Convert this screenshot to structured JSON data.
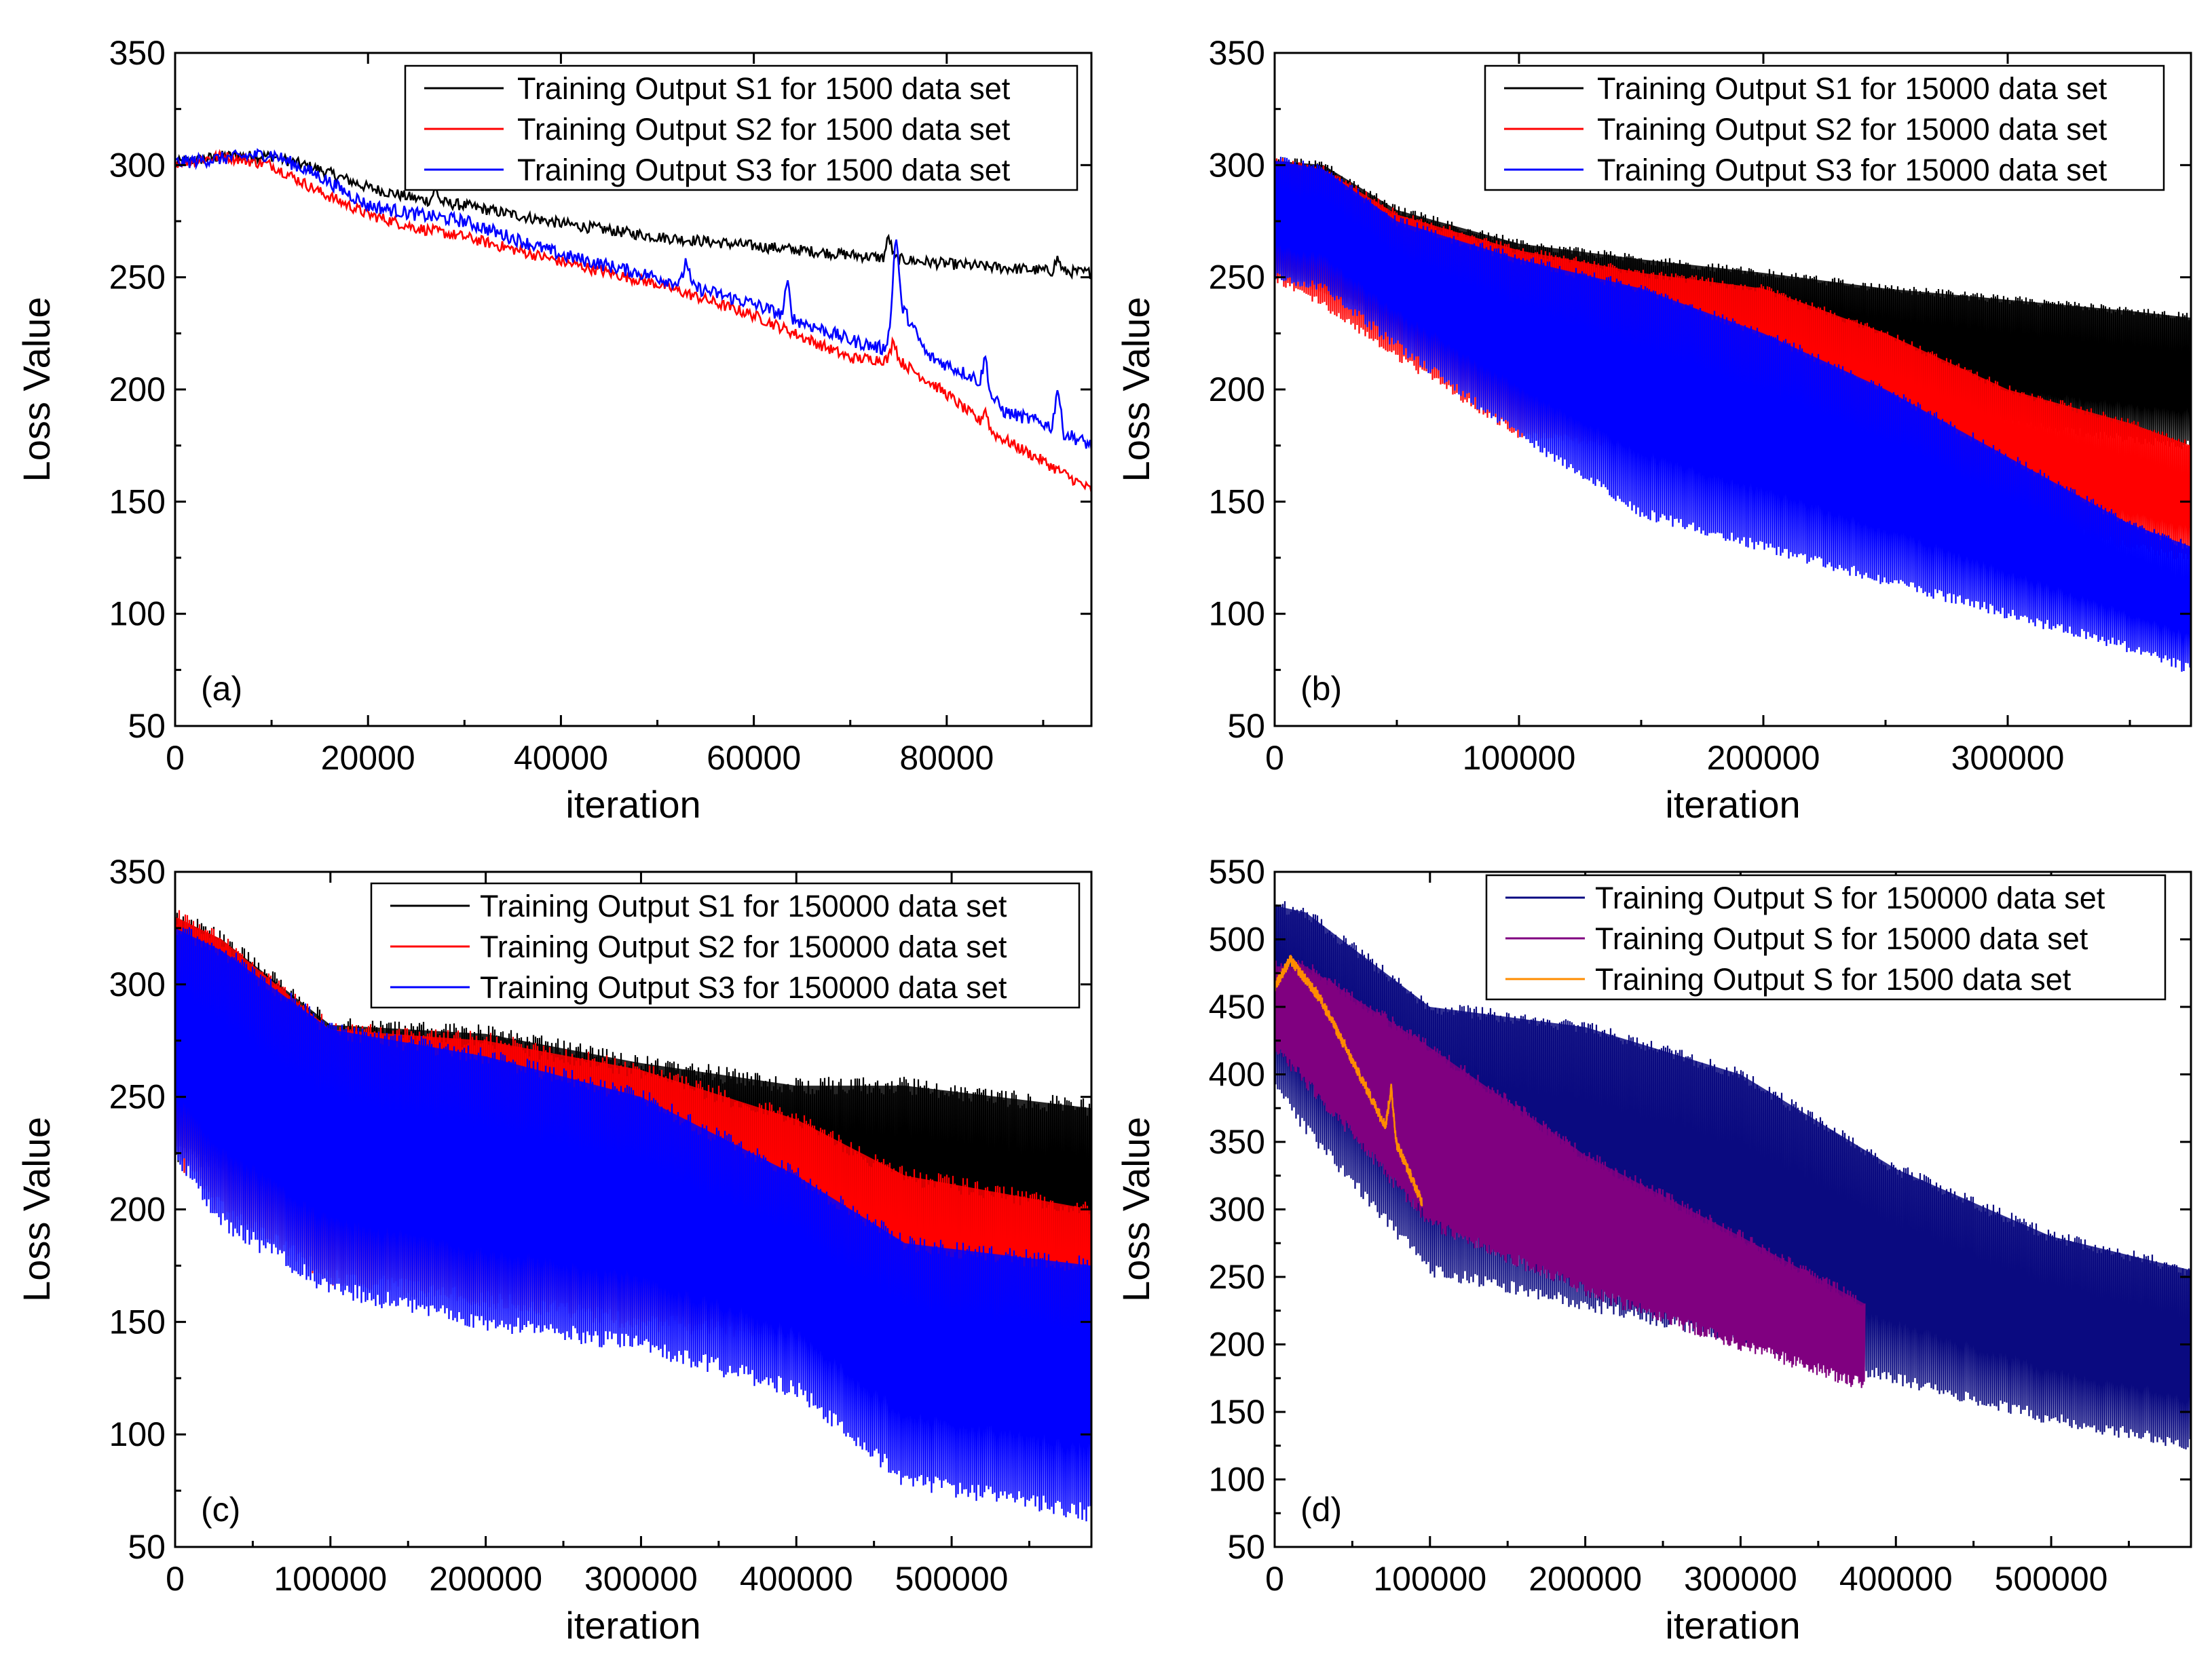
{
  "figure": {
    "ylabel": "Loss Value",
    "xlabel": "iteration"
  },
  "chart_data": [
    {
      "type": "line",
      "panel_label": "(a)",
      "xlabel": "iteration",
      "ylabel": "Loss Value",
      "xlim": [
        0,
        95000
      ],
      "ylim": [
        50,
        350
      ],
      "xticks": [
        0,
        20000,
        40000,
        60000,
        80000
      ],
      "xtick_labels": [
        "0",
        "20000",
        "40000",
        "60000",
        "80000"
      ],
      "yticks": [
        50,
        100,
        150,
        200,
        250,
        300,
        350
      ],
      "ytick_labels": [
        "50",
        "100",
        "150",
        "200",
        "250",
        "300",
        "350"
      ],
      "legend_position": "top-right",
      "series": [
        {
          "name": "Training Output S1 for 1500 data set",
          "color": "#000000",
          "band": false,
          "noise": 2.5,
          "spikes": [
            [
              27000,
              6
            ],
            [
              74000,
              10
            ],
            [
              91500,
              6
            ]
          ],
          "x": [
            0,
            5000,
            10000,
            15000,
            20000,
            25000,
            30000,
            40000,
            50000,
            60000,
            70000,
            80000,
            90000,
            95000
          ],
          "y": [
            301,
            304,
            304,
            298,
            290,
            285,
            282,
            274,
            268,
            264,
            260,
            256,
            253,
            252
          ]
        },
        {
          "name": "Training Output S2 for 1500 data set",
          "color": "#ff0000",
          "band": false,
          "noise": 2.5,
          "spikes": [
            [
              74500,
              10
            ],
            [
              84000,
              8
            ]
          ],
          "x": [
            0,
            5000,
            10000,
            15000,
            20000,
            25000,
            30000,
            40000,
            50000,
            60000,
            70000,
            75000,
            80000,
            85000,
            90000,
            95000
          ],
          "y": [
            301,
            304,
            300,
            288,
            278,
            272,
            268,
            257,
            247,
            233,
            214,
            213,
            198,
            180,
            168,
            155
          ]
        },
        {
          "name": "Training Output S3 for 1500 data set",
          "color": "#0000ff",
          "band": false,
          "noise": 3,
          "spikes": [
            [
              53000,
              12
            ],
            [
              63500,
              15
            ],
            [
              74700,
              35
            ],
            [
              84000,
              15
            ],
            [
              91500,
              20
            ]
          ],
          "x": [
            0,
            5000,
            10000,
            15000,
            20000,
            25000,
            30000,
            40000,
            50000,
            60000,
            70000,
            73500,
            75000,
            78000,
            83000,
            86000,
            90000,
            95000
          ],
          "y": [
            301,
            303,
            305,
            295,
            282,
            278,
            275,
            260,
            250,
            238,
            222,
            218,
            240,
            215,
            205,
            190,
            185,
            175
          ]
        }
      ]
    },
    {
      "type": "area",
      "panel_label": "(b)",
      "xlabel": "iteration",
      "ylabel": "Loss Value",
      "xlim": [
        0,
        375000
      ],
      "ylim": [
        50,
        350
      ],
      "xticks": [
        0,
        100000,
        200000,
        300000
      ],
      "xtick_labels": [
        "0",
        "100000",
        "200000",
        "300000"
      ],
      "yticks": [
        50,
        100,
        150,
        200,
        250,
        300,
        350
      ],
      "ytick_labels": [
        "50",
        "100",
        "150",
        "200",
        "250",
        "300",
        "350"
      ],
      "legend_position": "top-right",
      "series": [
        {
          "name": "Training Output S1 for 15000 data set",
          "color": "#000000",
          "band": true,
          "rough": 4,
          "x": [
            0,
            20000,
            50000,
            100000,
            150000,
            200000,
            250000,
            300000,
            350000,
            375000
          ],
          "upper": [
            302,
            300,
            280,
            265,
            258,
            252,
            245,
            240,
            235,
            232
          ],
          "lower": [
            250,
            245,
            230,
            215,
            210,
            205,
            195,
            185,
            178,
            175
          ]
        },
        {
          "name": "Training Output S2 for 15000 data set",
          "color": "#ff0000",
          "band": true,
          "rough": 4,
          "x": [
            0,
            20000,
            50000,
            100000,
            150000,
            200000,
            250000,
            300000,
            350000,
            375000
          ],
          "upper": [
            302,
            298,
            278,
            262,
            252,
            245,
            225,
            200,
            185,
            175
          ],
          "lower": [
            250,
            238,
            215,
            180,
            175,
            168,
            160,
            145,
            130,
            125
          ]
        },
        {
          "name": "Training Output S3 for 15000 data set",
          "color": "#0000ff",
          "band": true,
          "rough": 5,
          "x": [
            0,
            20000,
            50000,
            100000,
            150000,
            200000,
            250000,
            300000,
            350000,
            375000
          ],
          "upper": [
            302,
            298,
            275,
            258,
            245,
            225,
            200,
            170,
            140,
            130
          ],
          "lower": [
            250,
            245,
            220,
            180,
            145,
            130,
            115,
            100,
            85,
            75
          ]
        }
      ]
    },
    {
      "type": "area",
      "panel_label": "(c)",
      "xlabel": "iteration",
      "ylabel": "Loss Value",
      "xlim": [
        0,
        590000
      ],
      "ylim": [
        50,
        350
      ],
      "xticks": [
        0,
        100000,
        200000,
        300000,
        400000,
        500000
      ],
      "xtick_labels": [
        "0",
        "100000",
        "200000",
        "300000",
        "400000",
        "500000"
      ],
      "yticks": [
        50,
        100,
        150,
        200,
        250,
        300,
        350
      ],
      "ytick_labels": [
        "50",
        "100",
        "150",
        "200",
        "250",
        "300",
        "350"
      ],
      "legend_position": "top-right",
      "series": [
        {
          "name": "Training Output S1 for 150000 data set",
          "color": "#000000",
          "band": true,
          "rough": 8,
          "x": [
            0,
            30000,
            100000,
            200000,
            300000,
            400000,
            470000,
            590000
          ],
          "upper": [
            330,
            320,
            282,
            278,
            265,
            255,
            255,
            245
          ],
          "lower": [
            225,
            220,
            200,
            200,
            195,
            190,
            175,
            165
          ]
        },
        {
          "name": "Training Output S2 for 150000 data set",
          "color": "#ff0000",
          "band": true,
          "rough": 8,
          "x": [
            0,
            30000,
            100000,
            200000,
            300000,
            400000,
            470000,
            590000
          ],
          "upper": [
            330,
            320,
            280,
            275,
            262,
            240,
            215,
            200
          ],
          "lower": [
            225,
            200,
            170,
            160,
            150,
            145,
            135,
            125
          ]
        },
        {
          "name": "Training Output S3 for 150000 data set",
          "color": "#0000ff",
          "band": true,
          "rough": 8,
          "x": [
            0,
            30000,
            100000,
            200000,
            300000,
            400000,
            470000,
            590000
          ],
          "upper": [
            325,
            315,
            280,
            268,
            250,
            215,
            185,
            175
          ],
          "lower": [
            225,
            195,
            165,
            150,
            140,
            120,
            80,
            65
          ]
        }
      ]
    },
    {
      "type": "area",
      "panel_label": "(d)",
      "xlabel": "iteration",
      "ylabel": "Loss Value",
      "xlim": [
        0,
        590000
      ],
      "ylim": [
        50,
        550
      ],
      "xticks": [
        0,
        100000,
        200000,
        300000,
        400000,
        500000
      ],
      "xtick_labels": [
        "0",
        "100000",
        "200000",
        "300000",
        "400000",
        "500000"
      ],
      "yticks": [
        50,
        100,
        150,
        200,
        250,
        300,
        350,
        400,
        450,
        500,
        550
      ],
      "ytick_labels": [
        "50",
        "100",
        "150",
        "200",
        "250",
        "300",
        "350",
        "400",
        "450",
        "500",
        "550"
      ],
      "legend_position": "top-right",
      "series": [
        {
          "name": "Training Output S for 150000 data set",
          "color": "#0a0a80",
          "band": true,
          "rough": 10,
          "x": [
            0,
            20000,
            100000,
            200000,
            300000,
            400000,
            500000,
            590000
          ],
          "upper": [
            525,
            520,
            450,
            435,
            400,
            330,
            280,
            255
          ],
          "lower": [
            395,
            360,
            255,
            230,
            205,
            175,
            145,
            125
          ]
        },
        {
          "name": "Training Output S for 15000 data set",
          "color": "#800080",
          "band": true,
          "rough": 10,
          "x": [
            0,
            20000,
            100000,
            200000,
            300000,
            380000
          ],
          "upper": [
            480,
            480,
            420,
            340,
            280,
            230
          ],
          "lower": [
            420,
            395,
            290,
            240,
            200,
            170
          ]
        },
        {
          "name": "Training Output S for 1500 data set",
          "color": "#ff8c00",
          "band": false,
          "noise": 4,
          "spikes": [
            [
              75000,
              35
            ]
          ],
          "x": [
            0,
            10000,
            30000,
            50000,
            70000,
            80000,
            95000
          ],
          "y": [
            465,
            485,
            455,
            410,
            365,
            345,
            305
          ]
        }
      ]
    }
  ]
}
